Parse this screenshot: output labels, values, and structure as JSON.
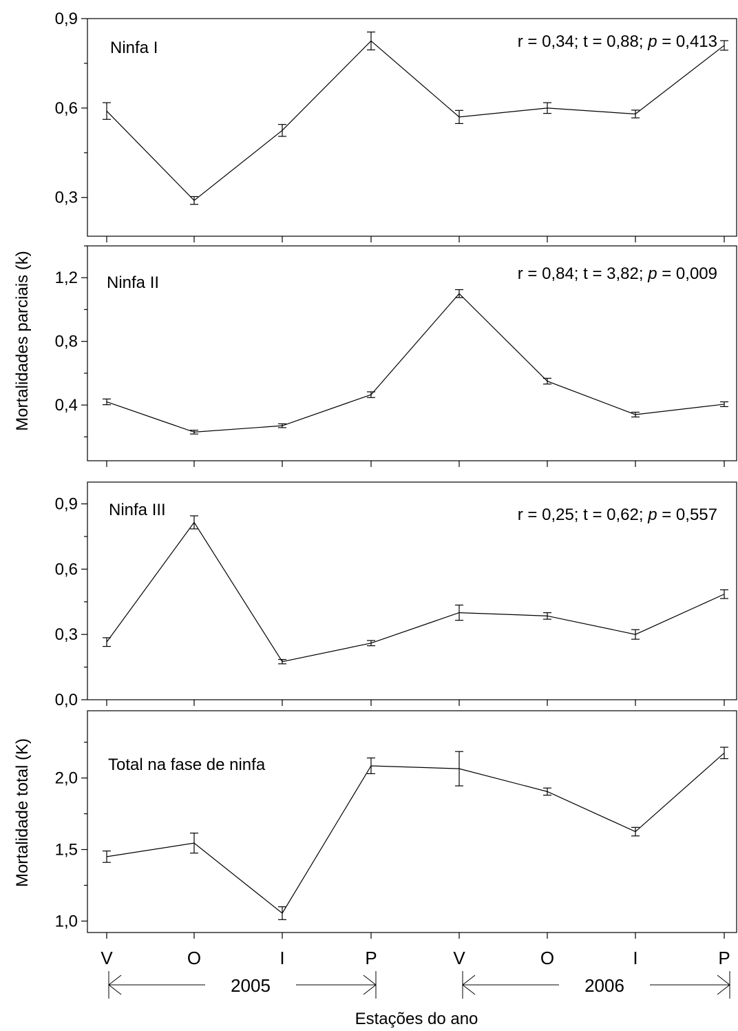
{
  "chart_data": [
    {
      "type": "line",
      "panel_label": "Ninfa I",
      "stats": {
        "r": "r = 0,34;",
        "t": "t = 0,88;",
        "p_symbol": "p",
        "p": " = 0,413"
      },
      "yticks": [
        0.3,
        0.6,
        0.9
      ],
      "ytick_labels": [
        "0,3",
        "0,6",
        "0,9"
      ],
      "ylim": [
        0.17,
        0.9
      ],
      "values": [
        0.59,
        0.29,
        0.525,
        0.825,
        0.57,
        0.6,
        0.58,
        0.81
      ],
      "errors": [
        0.028,
        0.013,
        0.02,
        0.03,
        0.022,
        0.018,
        0.013,
        0.016
      ]
    },
    {
      "type": "line",
      "panel_label": "Ninfa II",
      "stats": {
        "r": "r = 0,84;",
        "t": "t = 3,82;",
        "p_symbol": "p",
        "p": " = 0,009"
      },
      "yticks": [
        0.4,
        0.8,
        1.2
      ],
      "ytick_labels": [
        "0,4",
        "0,8",
        "1,2"
      ],
      "ylim": [
        0.05,
        1.4
      ],
      "values": [
        0.42,
        0.23,
        0.27,
        0.465,
        1.1,
        0.55,
        0.34,
        0.405
      ],
      "errors": [
        0.018,
        0.012,
        0.012,
        0.018,
        0.025,
        0.018,
        0.015,
        0.015
      ]
    },
    {
      "type": "line",
      "panel_label": "Ninfa III",
      "stats": {
        "r": "r = 0,25;",
        "t": "t = 0,62;",
        "p_symbol": "p",
        "p": " = 0,557"
      },
      "yticks": [
        0.0,
        0.3,
        0.6,
        0.9
      ],
      "ytick_labels": [
        "0,0",
        "0,3",
        "0,6",
        "0,9"
      ],
      "ylim": [
        0.0,
        1.0
      ],
      "values": [
        0.265,
        0.815,
        0.175,
        0.26,
        0.4,
        0.385,
        0.3,
        0.485
      ],
      "errors": [
        0.02,
        0.03,
        0.01,
        0.012,
        0.035,
        0.015,
        0.022,
        0.02
      ]
    },
    {
      "type": "line",
      "panel_label": "Total na fase de ninfa",
      "yticks": [
        1.0,
        1.5,
        2.0
      ],
      "ytick_labels": [
        "1,0",
        "1,5",
        "2,0"
      ],
      "ylim": [
        0.92,
        2.47
      ],
      "values": [
        1.45,
        1.545,
        1.055,
        2.085,
        2.065,
        1.905,
        1.625,
        2.175
      ],
      "errors": [
        0.04,
        0.07,
        0.045,
        0.055,
        0.12,
        0.025,
        0.03,
        0.04
      ]
    }
  ],
  "categories": [
    "V",
    "O",
    "I",
    "P",
    "V",
    "O",
    "I",
    "P"
  ],
  "years": [
    "2005",
    "2006"
  ],
  "ylabel_top": "Mortalidades parciais (k)",
  "ylabel_bottom": "Mortalidade total (K)",
  "xlabel": "Estações do ano"
}
